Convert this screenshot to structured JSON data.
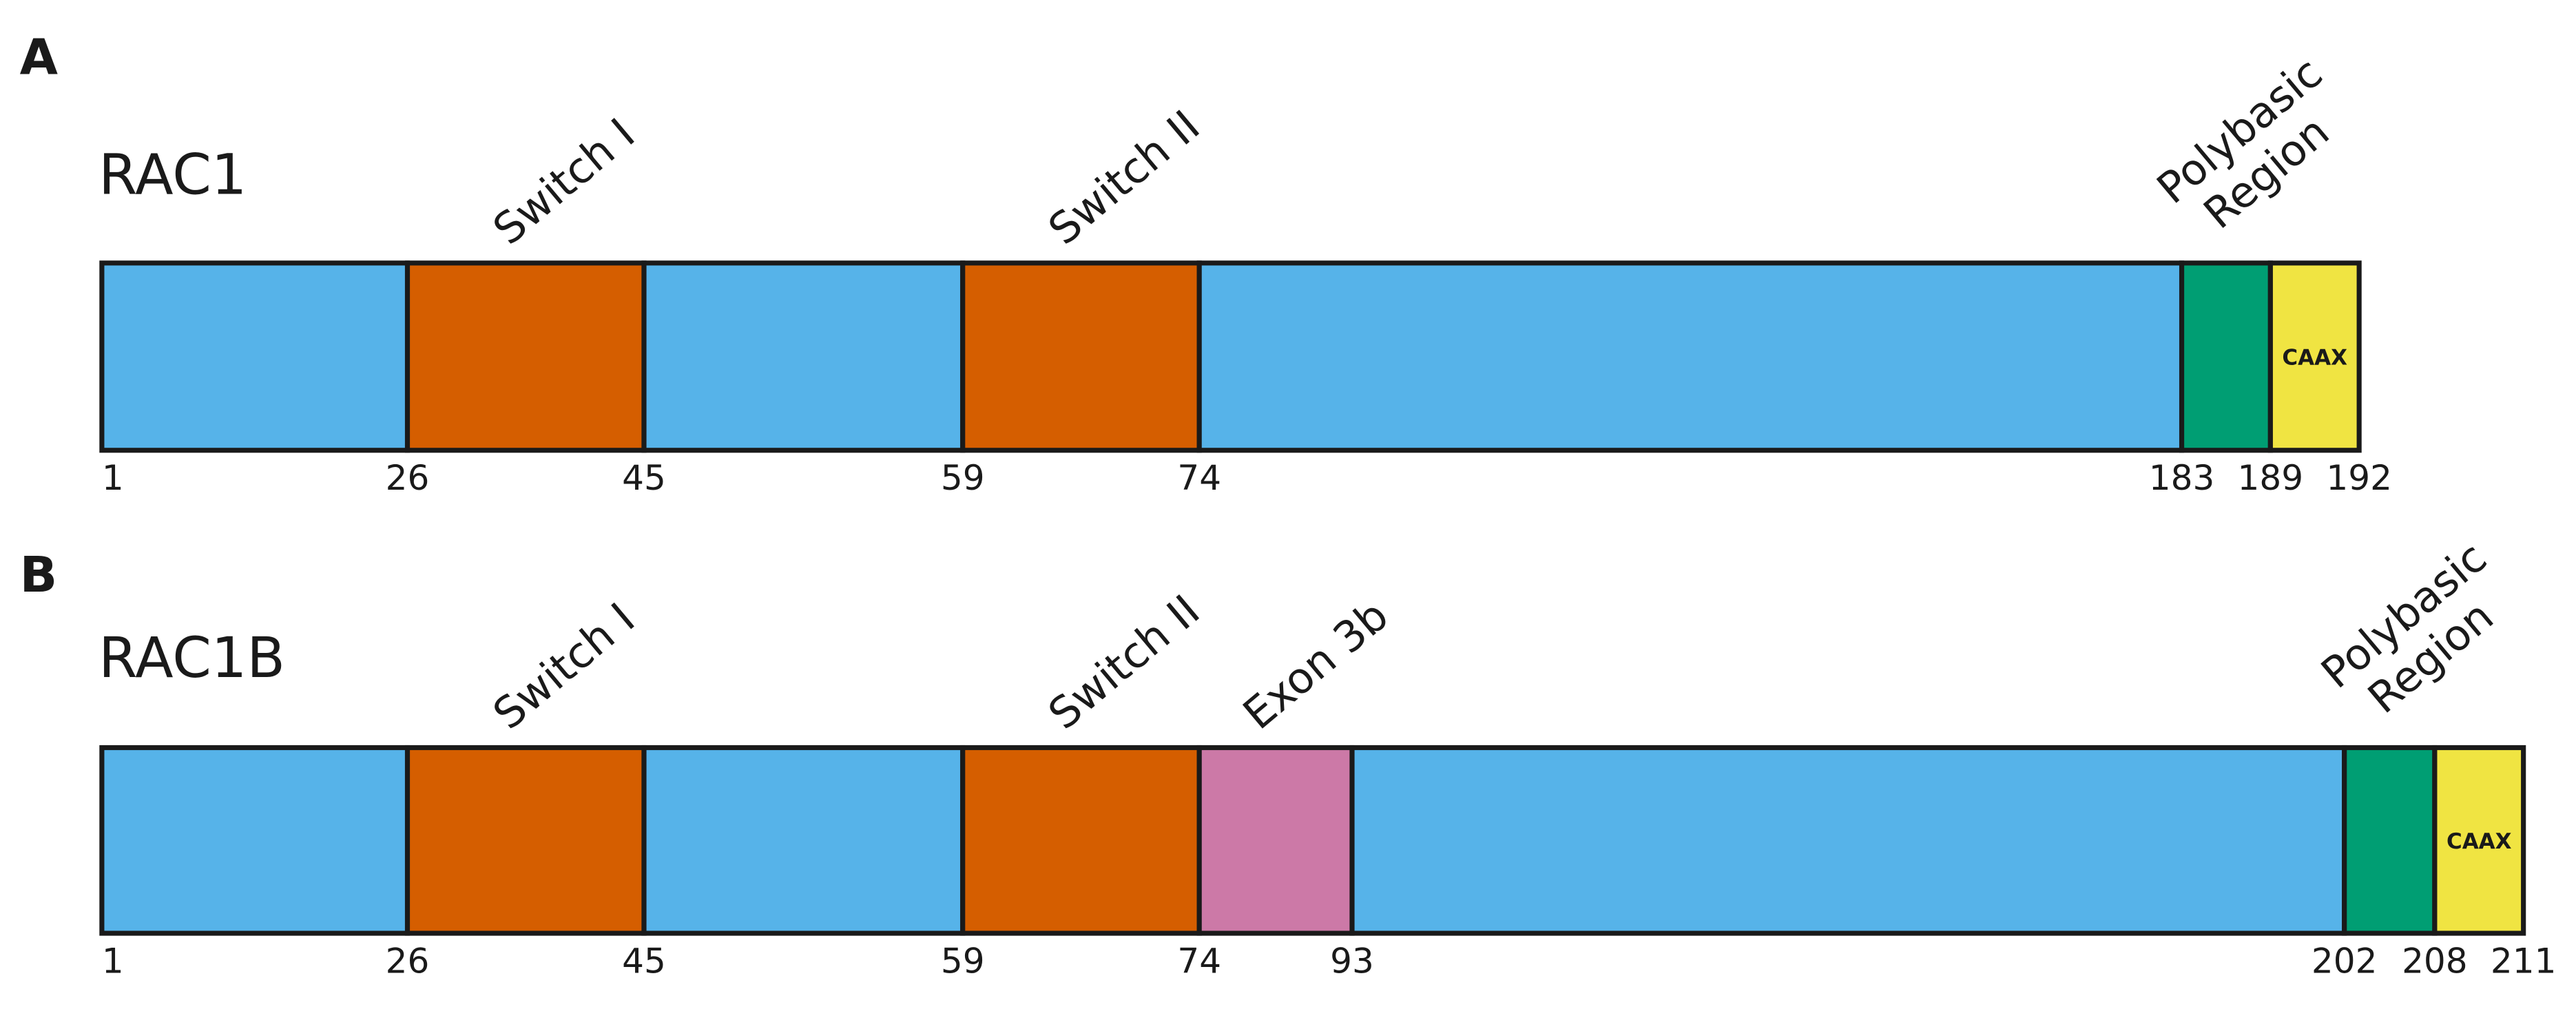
{
  "panels": [
    {
      "letter": "A",
      "name": "RAC1",
      "positions": [
        1,
        26,
        45,
        59,
        74,
        183,
        189,
        192
      ],
      "segments": [
        {
          "color": "#56b3e9"
        },
        {
          "color": "#d55e00",
          "label": "Switch I"
        },
        {
          "color": "#56b3e9"
        },
        {
          "color": "#d55e00",
          "label": "Switch II"
        },
        {
          "color": "#56b3e9"
        },
        {
          "color": "#009e73",
          "label": [
            "Polybasic",
            "Region"
          ]
        },
        {
          "color": "#f0e442",
          "inner": "CAAX"
        }
      ]
    },
    {
      "letter": "B",
      "name": "RAC1B",
      "positions": [
        1,
        26,
        45,
        59,
        74,
        93,
        202,
        208,
        211
      ],
      "segments": [
        {
          "color": "#56b3e9"
        },
        {
          "color": "#d55e00",
          "label": "Switch I"
        },
        {
          "color": "#56b3e9"
        },
        {
          "color": "#d55e00",
          "label": "Switch II"
        },
        {
          "color": "#cc79a7",
          "label": "Exon 3b"
        },
        {
          "color": "#56b3e9"
        },
        {
          "color": "#009e73",
          "label": [
            "Polybasic",
            "Region"
          ]
        },
        {
          "color": "#f0e442",
          "inner": "CAAX"
        }
      ]
    }
  ]
}
